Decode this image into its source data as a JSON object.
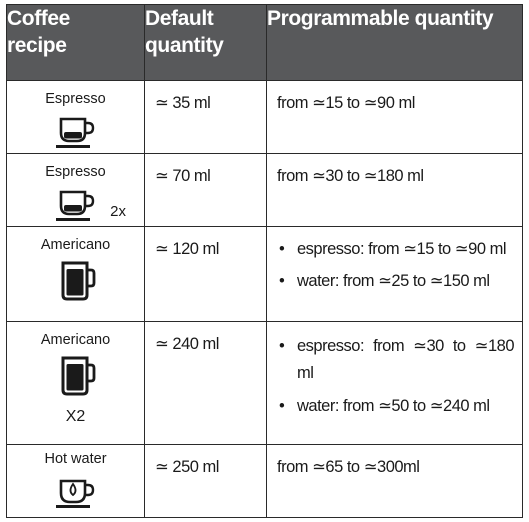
{
  "headers": {
    "recipe_line1": "Coffee",
    "recipe_line2": "recipe",
    "default_line1": "Default",
    "default_line2": "quantity",
    "programmable": "Programmable quantity"
  },
  "rows": [
    {
      "recipe": "Espresso",
      "icon": "espresso-cup-icon",
      "multiplier": "",
      "default": "≃ 35 ml",
      "programmable": [
        "from ≃15 to ≃90 ml"
      ]
    },
    {
      "recipe": "Espresso",
      "icon": "espresso-cup-icon",
      "multiplier": "2x",
      "default": "≃ 70 ml",
      "programmable": [
        "from ≃30 to ≃180 ml"
      ]
    },
    {
      "recipe": "Americano",
      "icon": "mug-icon",
      "multiplier": "",
      "default": "≃ 120 ml",
      "programmable": [
        "espresso: from ≃15 to ≃90 ml",
        "water: from ≃25 to ≃150 ml"
      ]
    },
    {
      "recipe": "Americano",
      "icon": "mug-icon",
      "multiplier": "X2",
      "default": "≃ 240 ml",
      "programmable": [
        "espresso: from ≃30 to ≃180 ml",
        "water: from ≃50 to ≃240 ml"
      ]
    },
    {
      "recipe": "Hot water",
      "icon": "hot-water-cup-icon",
      "multiplier": "",
      "default": "≃ 250 ml",
      "programmable": [
        "from ≃65 to ≃300ml"
      ]
    }
  ],
  "colors": {
    "header_bg": "#58595b",
    "header_text": "#ffffff",
    "border": "#2a2a2a",
    "icon": "#1a1a1a"
  }
}
